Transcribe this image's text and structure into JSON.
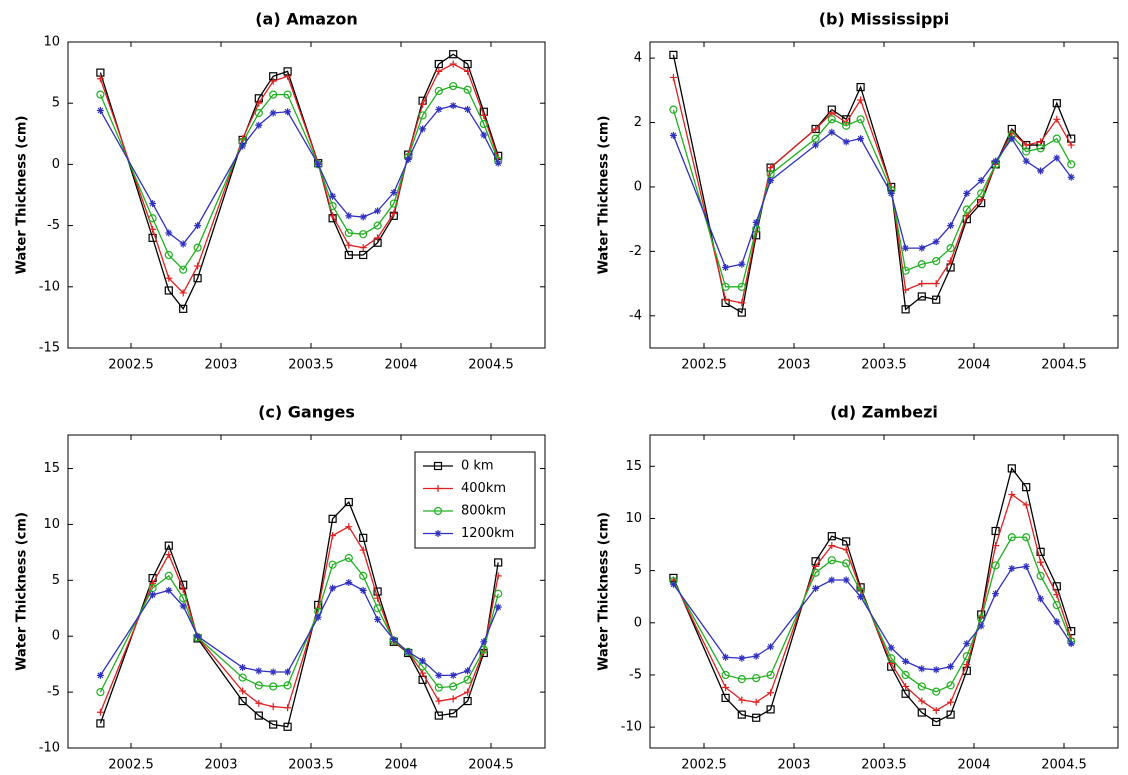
{
  "chart_data": [
    {
      "type": "line",
      "title": "(a) Amazon",
      "y_label": "Water Thickness (cm)",
      "x": [
        2002.33,
        2002.62,
        2002.71,
        2002.79,
        2002.87,
        2003.12,
        2003.21,
        2003.29,
        2003.37,
        2003.54,
        2003.62,
        2003.71,
        2003.79,
        2003.87,
        2003.96,
        2004.04,
        2004.12,
        2004.21,
        2004.29,
        2004.37,
        2004.46,
        2004.54
      ],
      "series": [
        {
          "name": "0 km",
          "color": "#000000",
          "marker": "square",
          "values": [
            7.5,
            -6,
            -10.3,
            -11.8,
            -9.3,
            2,
            5.4,
            7.2,
            7.6,
            0.1,
            -4.4,
            -7.4,
            -7.4,
            -6.4,
            -4.2,
            0.8,
            5.2,
            8.2,
            9,
            8.2,
            4.3,
            0.7
          ]
        },
        {
          "name": "400km",
          "color": "#e02020",
          "marker": "plus",
          "values": [
            7,
            -5.3,
            -9.3,
            -10.5,
            -8.3,
            2.1,
            5,
            6.8,
            7.2,
            0.1,
            -4.2,
            -6.6,
            -6.8,
            -6,
            -4,
            0.8,
            4.9,
            7.6,
            8.2,
            7.6,
            4,
            0.5
          ]
        },
        {
          "name": "800km",
          "color": "#20b020",
          "marker": "circle",
          "values": [
            5.7,
            -4.4,
            -7.4,
            -8.6,
            -6.8,
            1.8,
            4.2,
            5.7,
            5.7,
            0,
            -3.4,
            -5.6,
            -5.7,
            -5,
            -3.2,
            0.6,
            4,
            6,
            6.4,
            6.1,
            3.3,
            0.3
          ]
        },
        {
          "name": "1200km",
          "color": "#3030c0",
          "marker": "star",
          "values": [
            4.4,
            -3.2,
            -5.6,
            -6.5,
            -5,
            1.5,
            3.2,
            4.2,
            4.3,
            0,
            -2.6,
            -4.2,
            -4.3,
            -3.8,
            -2.3,
            0.4,
            2.9,
            4.5,
            4.8,
            4.5,
            2.4,
            0.1
          ]
        }
      ],
      "xlim": [
        2002.15,
        2004.8
      ],
      "xticks": [
        2002.5,
        2003,
        2003.5,
        2004,
        2004.5
      ],
      "ylim": [
        -15,
        10
      ],
      "yticks": [
        -15,
        -10,
        -5,
        0,
        5,
        10
      ]
    },
    {
      "type": "line",
      "title": "(b) Mississippi",
      "y_label": "Water Thickness (cm)",
      "x": [
        2002.33,
        2002.62,
        2002.71,
        2002.79,
        2002.87,
        2003.12,
        2003.21,
        2003.29,
        2003.37,
        2003.54,
        2003.62,
        2003.71,
        2003.79,
        2003.87,
        2003.96,
        2004.04,
        2004.12,
        2004.21,
        2004.29,
        2004.37,
        2004.46,
        2004.54
      ],
      "series": [
        {
          "name": "0 km",
          "color": "#000000",
          "marker": "square",
          "values": [
            4.1,
            -3.6,
            -3.9,
            -1.5,
            0.6,
            1.8,
            2.4,
            2.1,
            3.1,
            0,
            -3.8,
            -3.4,
            -3.5,
            -2.5,
            -1,
            -0.5,
            0.7,
            1.8,
            1.3,
            1.3,
            2.6,
            1.5
          ]
        },
        {
          "name": "400km",
          "color": "#e02020",
          "marker": "plus",
          "values": [
            3.4,
            -3.5,
            -3.6,
            -1.4,
            0.6,
            1.8,
            2.3,
            2,
            2.7,
            0,
            -3.2,
            -3,
            -3,
            -2.3,
            -0.9,
            -0.4,
            0.7,
            1.7,
            1.3,
            1.4,
            2.1,
            1.3
          ]
        },
        {
          "name": "800km",
          "color": "#20b020",
          "marker": "circle",
          "values": [
            2.4,
            -3.1,
            -3.1,
            -1.3,
            0.4,
            1.5,
            2.1,
            1.9,
            2.1,
            -0.1,
            -2.6,
            -2.4,
            -2.3,
            -1.9,
            -0.7,
            -0.2,
            0.7,
            1.6,
            1.1,
            1.2,
            1.5,
            0.7
          ]
        },
        {
          "name": "1200km",
          "color": "#3030c0",
          "marker": "star",
          "values": [
            1.6,
            -2.5,
            -2.4,
            -1.1,
            0.2,
            1.3,
            1.7,
            1.4,
            1.5,
            -0.2,
            -1.9,
            -1.9,
            -1.7,
            -1.2,
            -0.2,
            0.2,
            0.8,
            1.5,
            0.8,
            0.5,
            0.9,
            0.3
          ]
        }
      ],
      "xlim": [
        2002.2,
        2004.8
      ],
      "xticks": [
        2002.5,
        2003,
        2003.5,
        2004,
        2004.5
      ],
      "ylim": [
        -5,
        4.5
      ],
      "yticks": [
        -4,
        -2,
        0,
        2,
        4
      ]
    },
    {
      "type": "line",
      "title": "(c) Ganges",
      "y_label": "Water Thickness (cm)",
      "legend": "upper right",
      "x": [
        2002.33,
        2002.62,
        2002.71,
        2002.79,
        2002.87,
        2003.12,
        2003.21,
        2003.29,
        2003.37,
        2003.54,
        2003.62,
        2003.71,
        2003.79,
        2003.87,
        2003.96,
        2004.04,
        2004.12,
        2004.21,
        2004.29,
        2004.37,
        2004.46,
        2004.54
      ],
      "series": [
        {
          "name": "0 km",
          "color": "#000000",
          "marker": "square",
          "values": [
            -7.8,
            5.2,
            8.1,
            4.6,
            -0.2,
            -5.8,
            -7.1,
            -7.9,
            -8.1,
            2.8,
            10.5,
            12,
            8.8,
            4,
            -0.5,
            -1.5,
            -3.9,
            -7.1,
            -6.9,
            -5.8,
            -1.5,
            6.6
          ]
        },
        {
          "name": "400km",
          "color": "#e02020",
          "marker": "plus",
          "values": [
            -6.8,
            4.7,
            7.3,
            4.2,
            -0.1,
            -4.9,
            -6,
            -6.3,
            -6.4,
            2.5,
            9,
            9.8,
            7.7,
            3.4,
            -0.5,
            -1.4,
            -3.3,
            -5.8,
            -5.6,
            -5,
            -1.3,
            5.4
          ]
        },
        {
          "name": "800km",
          "color": "#20b020",
          "marker": "circle",
          "values": [
            -5,
            4.3,
            5.4,
            3.4,
            -0.1,
            -3.7,
            -4.4,
            -4.5,
            -4.4,
            2.2,
            6.4,
            7,
            5.4,
            2.5,
            -0.4,
            -1.4,
            -2.7,
            -4.6,
            -4.5,
            -3.9,
            -1.2,
            3.8
          ]
        },
        {
          "name": "1200km",
          "color": "#3030c0",
          "marker": "star",
          "values": [
            -3.5,
            3.7,
            4.1,
            2.7,
            0,
            -2.8,
            -3.1,
            -3.2,
            -3.2,
            1.7,
            4.3,
            4.8,
            4.1,
            1.5,
            -0.3,
            -1.4,
            -2.2,
            -3.5,
            -3.5,
            -3.1,
            -0.5,
            2.6
          ]
        }
      ],
      "xlim": [
        2002.15,
        2004.8
      ],
      "xticks": [
        2002.5,
        2003,
        2003.5,
        2004,
        2004.5
      ],
      "ylim": [
        -10,
        18
      ],
      "yticks": [
        -10,
        -5,
        0,
        5,
        10,
        15
      ]
    },
    {
      "type": "line",
      "title": "(d) Zambezi",
      "y_label": "Water Thickness (cm)",
      "x": [
        2002.33,
        2002.62,
        2002.71,
        2002.79,
        2002.87,
        2003.12,
        2003.21,
        2003.29,
        2003.37,
        2003.54,
        2003.62,
        2003.71,
        2003.79,
        2003.87,
        2003.96,
        2004.04,
        2004.12,
        2004.21,
        2004.29,
        2004.37,
        2004.46,
        2004.54
      ],
      "series": [
        {
          "name": "0 km",
          "color": "#000000",
          "marker": "square",
          "values": [
            4.3,
            -7.2,
            -8.8,
            -9.1,
            -8.3,
            5.9,
            8.3,
            7.8,
            3.4,
            -4.2,
            -6.8,
            -8.6,
            -9.5,
            -8.8,
            -4.6,
            0.8,
            8.8,
            14.8,
            13,
            6.8,
            3.5,
            -0.8
          ]
        },
        {
          "name": "400km",
          "color": "#e02020",
          "marker": "plus",
          "values": [
            4.1,
            -6.2,
            -7.4,
            -7.6,
            -6.7,
            5.4,
            7.4,
            7,
            3.2,
            -3.9,
            -6.1,
            -7.5,
            -8.4,
            -7.6,
            -4,
            0.6,
            7.4,
            12.3,
            11.3,
            5.8,
            2.7,
            -1.5
          ]
        },
        {
          "name": "800km",
          "color": "#20b020",
          "marker": "circle",
          "values": [
            4,
            -5,
            -5.4,
            -5.3,
            -5,
            4.8,
            6,
            5.7,
            3,
            -3.4,
            -5,
            -6.1,
            -6.6,
            -6,
            -3.2,
            0.4,
            5.5,
            8.2,
            8.2,
            4.5,
            1.7,
            -1.8
          ]
        },
        {
          "name": "1200km",
          "color": "#3030c0",
          "marker": "star",
          "values": [
            3.7,
            -3.3,
            -3.4,
            -3.2,
            -2.3,
            3.3,
            4.1,
            4.1,
            2.5,
            -2.4,
            -3.7,
            -4.4,
            -4.5,
            -4.2,
            -2,
            -0.3,
            2.8,
            5.2,
            5.4,
            2.3,
            0.1,
            -2
          ]
        }
      ],
      "xlim": [
        2002.2,
        2004.8
      ],
      "xticks": [
        2002.5,
        2003,
        2003.5,
        2004,
        2004.5
      ],
      "ylim": [
        -12,
        18
      ],
      "yticks": [
        -10,
        -5,
        0,
        5,
        10,
        15
      ]
    }
  ]
}
